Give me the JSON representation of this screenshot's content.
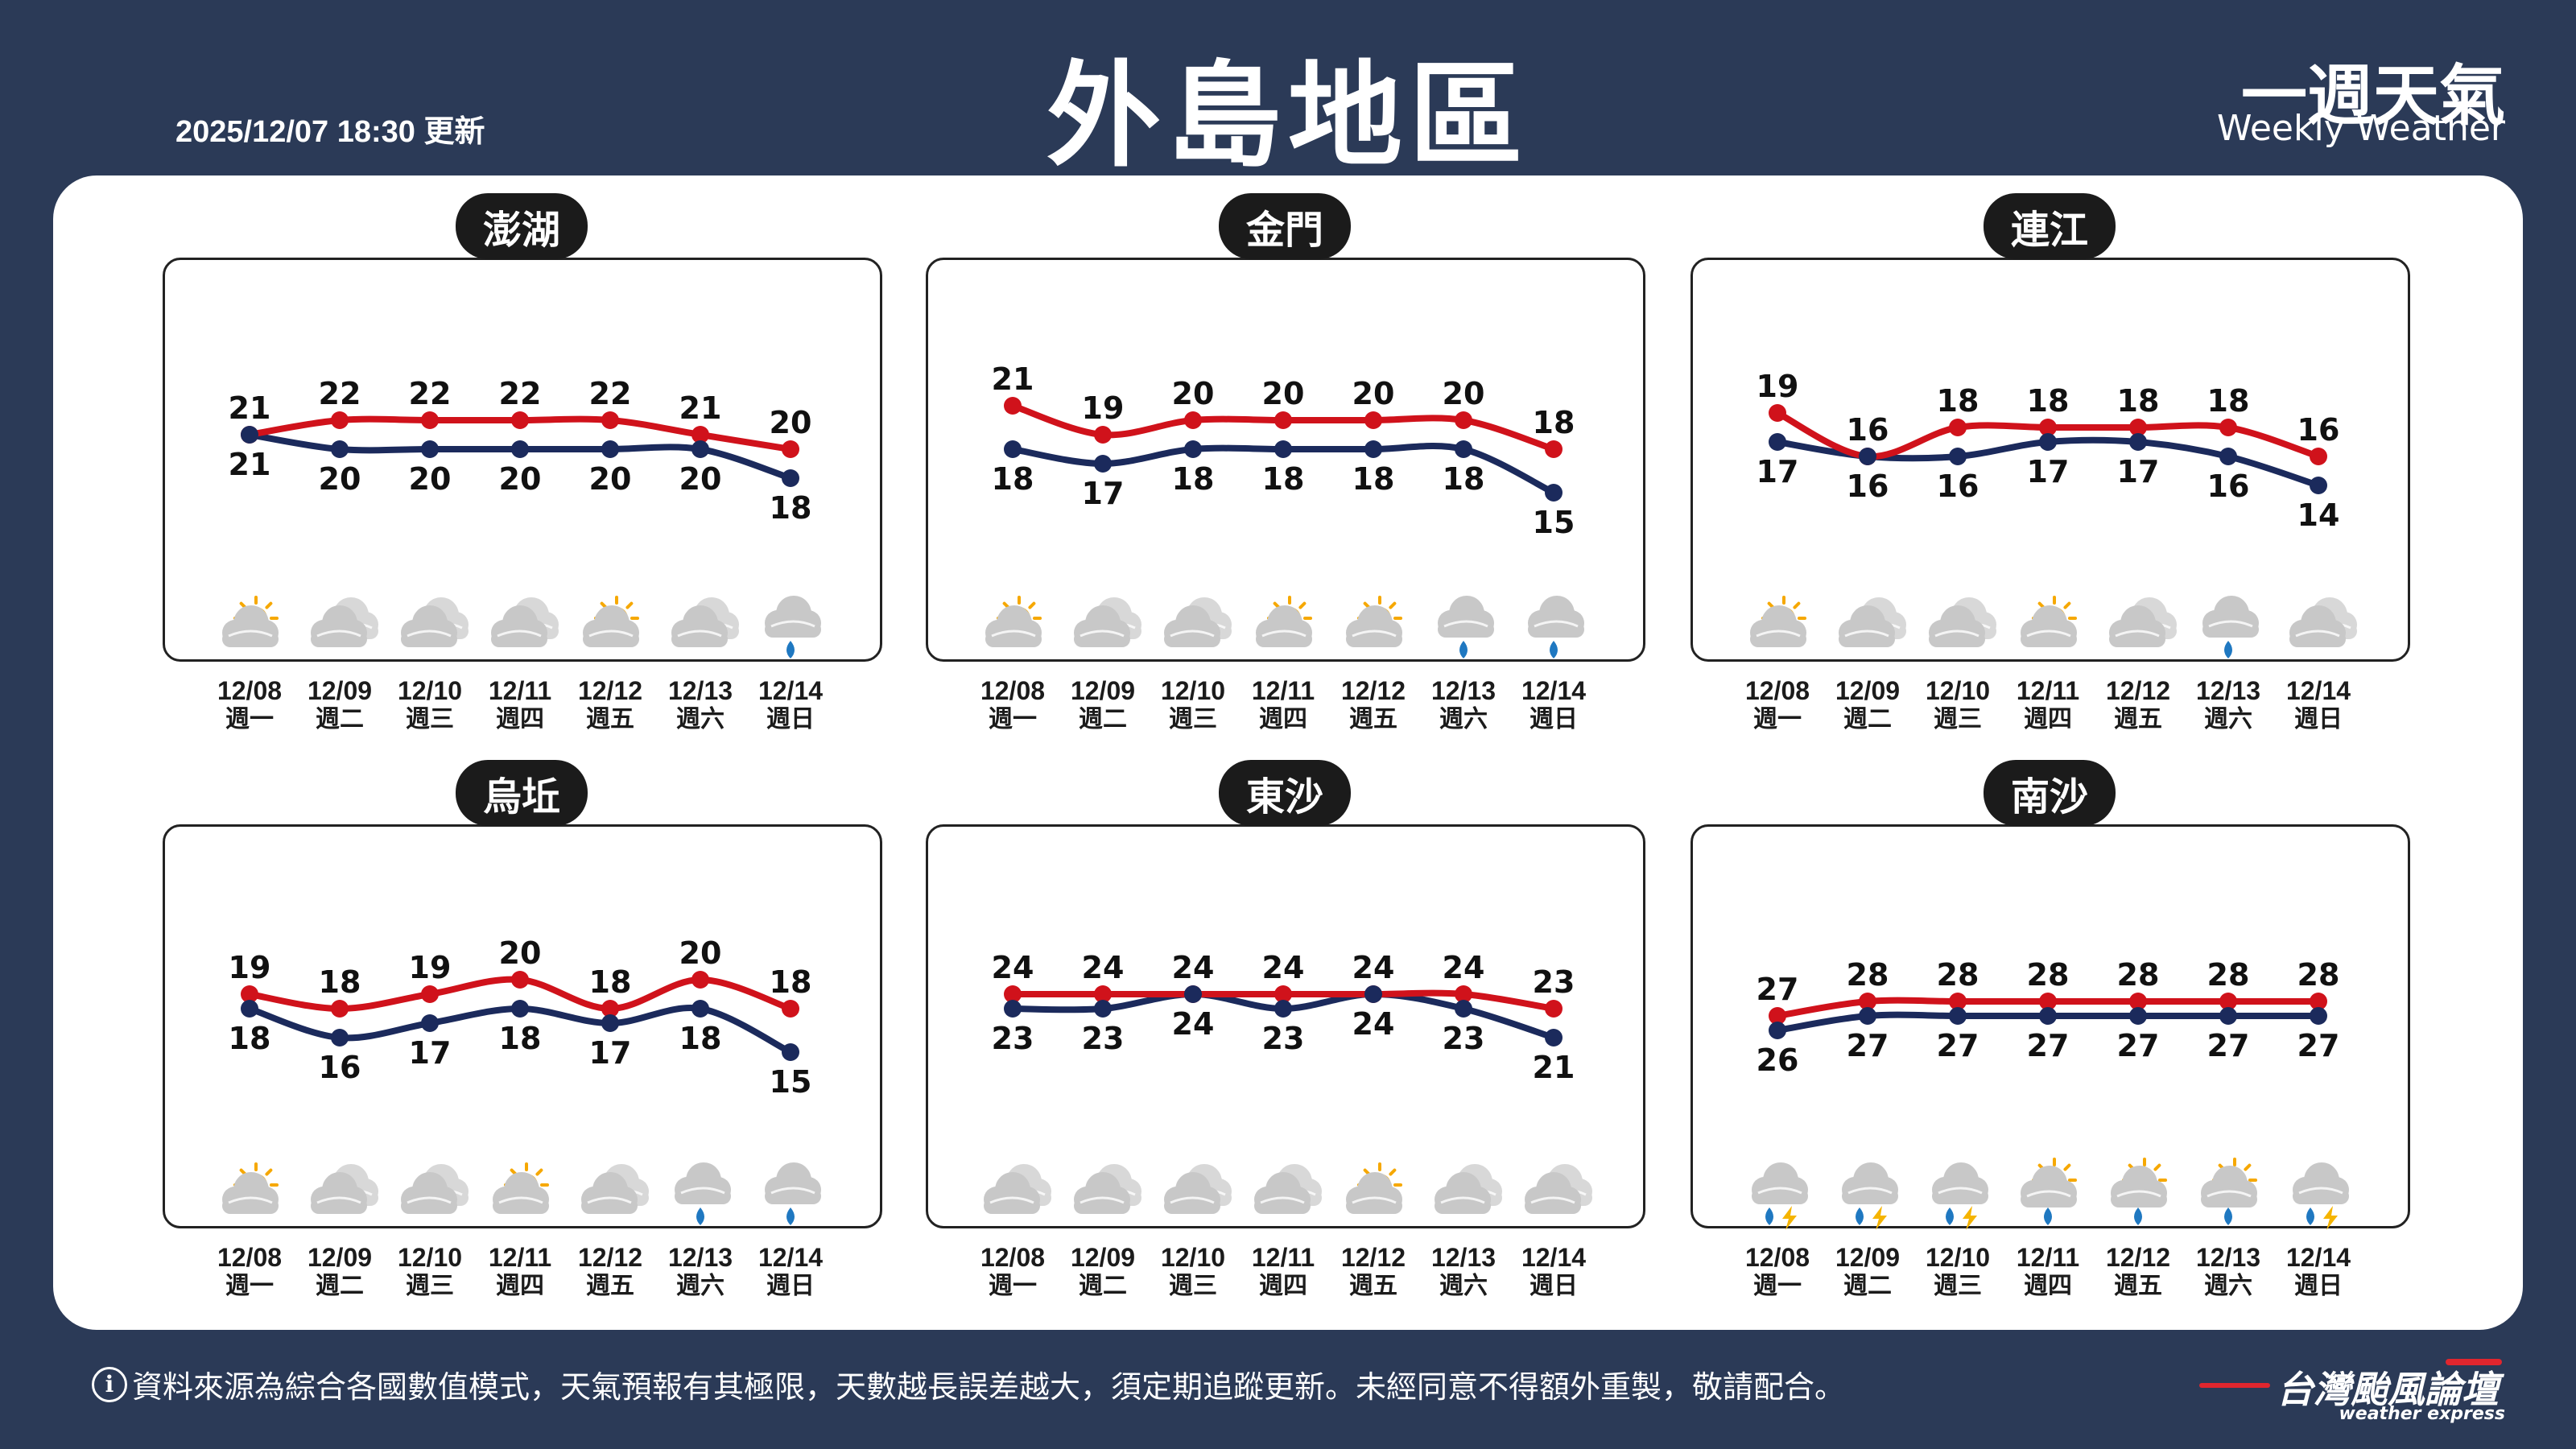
{
  "header": {
    "update_time": "2025/12/07 18:30 更新",
    "title": "外島地區",
    "brand_zh": "一週天氣",
    "brand_en": "Weekly Weather"
  },
  "colors": {
    "background": "#2b3a57",
    "high_line": "#d0121b",
    "low_line": "#1b2a5c",
    "rain": "#1f78c1",
    "lightning": "#f5b400",
    "sun": "#f6a800",
    "cloud": "#c8c8c8"
  },
  "regions": [
    {
      "name": "澎湖",
      "days": [
        {
          "date": "12/08",
          "weekday": "週一",
          "high": 21,
          "low": 21,
          "icon": "partly-sunny-icon"
        },
        {
          "date": "12/09",
          "weekday": "週二",
          "high": 22,
          "low": 20,
          "icon": "cloudy-icon"
        },
        {
          "date": "12/10",
          "weekday": "週三",
          "high": 22,
          "low": 20,
          "icon": "cloudy-icon"
        },
        {
          "date": "12/11",
          "weekday": "週四",
          "high": 22,
          "low": 20,
          "icon": "cloudy-icon"
        },
        {
          "date": "12/12",
          "weekday": "週五",
          "high": 22,
          "low": 20,
          "icon": "partly-sunny-icon"
        },
        {
          "date": "12/13",
          "weekday": "週六",
          "high": 21,
          "low": 20,
          "icon": "cloudy-icon"
        },
        {
          "date": "12/14",
          "weekday": "週日",
          "high": 20,
          "low": 18,
          "icon": "rain-icon"
        }
      ]
    },
    {
      "name": "金門",
      "days": [
        {
          "date": "12/08",
          "weekday": "週一",
          "high": 21,
          "low": 18,
          "icon": "partly-sunny-icon"
        },
        {
          "date": "12/09",
          "weekday": "週二",
          "high": 19,
          "low": 17,
          "icon": "cloudy-icon"
        },
        {
          "date": "12/10",
          "weekday": "週三",
          "high": 20,
          "low": 18,
          "icon": "cloudy-icon"
        },
        {
          "date": "12/11",
          "weekday": "週四",
          "high": 20,
          "low": 18,
          "icon": "partly-sunny-icon"
        },
        {
          "date": "12/12",
          "weekday": "週五",
          "high": 20,
          "low": 18,
          "icon": "partly-sunny-icon"
        },
        {
          "date": "12/13",
          "weekday": "週六",
          "high": 20,
          "low": 18,
          "icon": "rain-icon"
        },
        {
          "date": "12/14",
          "weekday": "週日",
          "high": 18,
          "low": 15,
          "icon": "rain-icon"
        }
      ]
    },
    {
      "name": "連江",
      "days": [
        {
          "date": "12/08",
          "weekday": "週一",
          "high": 19,
          "low": 17,
          "icon": "partly-sunny-icon"
        },
        {
          "date": "12/09",
          "weekday": "週二",
          "high": 16,
          "low": 16,
          "icon": "cloudy-icon"
        },
        {
          "date": "12/10",
          "weekday": "週三",
          "high": 18,
          "low": 16,
          "icon": "cloudy-icon"
        },
        {
          "date": "12/11",
          "weekday": "週四",
          "high": 18,
          "low": 17,
          "icon": "partly-sunny-icon"
        },
        {
          "date": "12/12",
          "weekday": "週五",
          "high": 18,
          "low": 17,
          "icon": "cloudy-icon"
        },
        {
          "date": "12/13",
          "weekday": "週六",
          "high": 18,
          "low": 16,
          "icon": "rain-icon"
        },
        {
          "date": "12/14",
          "weekday": "週日",
          "high": 16,
          "low": 14,
          "icon": "cloudy-icon"
        }
      ]
    },
    {
      "name": "烏坵",
      "days": [
        {
          "date": "12/08",
          "weekday": "週一",
          "high": 19,
          "low": 18,
          "icon": "partly-sunny-icon"
        },
        {
          "date": "12/09",
          "weekday": "週二",
          "high": 18,
          "low": 16,
          "icon": "cloudy-icon"
        },
        {
          "date": "12/10",
          "weekday": "週三",
          "high": 19,
          "low": 17,
          "icon": "cloudy-icon"
        },
        {
          "date": "12/11",
          "weekday": "週四",
          "high": 20,
          "low": 18,
          "icon": "partly-sunny-icon"
        },
        {
          "date": "12/12",
          "weekday": "週五",
          "high": 18,
          "low": 17,
          "icon": "cloudy-icon"
        },
        {
          "date": "12/13",
          "weekday": "週六",
          "high": 20,
          "low": 18,
          "icon": "rain-icon"
        },
        {
          "date": "12/14",
          "weekday": "週日",
          "high": 18,
          "low": 15,
          "icon": "rain-icon"
        }
      ]
    },
    {
      "name": "東沙",
      "days": [
        {
          "date": "12/08",
          "weekday": "週一",
          "high": 24,
          "low": 23,
          "icon": "cloudy-icon"
        },
        {
          "date": "12/09",
          "weekday": "週二",
          "high": 24,
          "low": 23,
          "icon": "cloudy-icon"
        },
        {
          "date": "12/10",
          "weekday": "週三",
          "high": 24,
          "low": 24,
          "icon": "cloudy-icon"
        },
        {
          "date": "12/11",
          "weekday": "週四",
          "high": 24,
          "low": 23,
          "icon": "cloudy-icon"
        },
        {
          "date": "12/12",
          "weekday": "週五",
          "high": 24,
          "low": 24,
          "icon": "partly-sunny-icon"
        },
        {
          "date": "12/13",
          "weekday": "週六",
          "high": 24,
          "low": 23,
          "icon": "cloudy-icon"
        },
        {
          "date": "12/14",
          "weekday": "週日",
          "high": 23,
          "low": 21,
          "icon": "cloudy-icon"
        }
      ]
    },
    {
      "name": "南沙",
      "days": [
        {
          "date": "12/08",
          "weekday": "週一",
          "high": 27,
          "low": 26,
          "icon": "thunderstorm-icon"
        },
        {
          "date": "12/09",
          "weekday": "週二",
          "high": 28,
          "low": 27,
          "icon": "thunderstorm-icon"
        },
        {
          "date": "12/10",
          "weekday": "週三",
          "high": 28,
          "low": 27,
          "icon": "thunderstorm-icon"
        },
        {
          "date": "12/11",
          "weekday": "週四",
          "high": 28,
          "low": 27,
          "icon": "sunny-rain-icon"
        },
        {
          "date": "12/12",
          "weekday": "週五",
          "high": 28,
          "low": 27,
          "icon": "sunny-rain-icon"
        },
        {
          "date": "12/13",
          "weekday": "週六",
          "high": 28,
          "low": 27,
          "icon": "sunny-rain-icon"
        },
        {
          "date": "12/14",
          "weekday": "週日",
          "high": 28,
          "low": 27,
          "icon": "thunderstorm-icon"
        }
      ]
    }
  ],
  "footer": {
    "disclaimer": "資料來源為綜合各國數值模式，天氣預報有其極限，天數越長誤差越大，須定期追蹤更新。未經同意不得額外重製，敬請配合。",
    "logo_zh": "台灣颱風論壇",
    "logo_en": "weather express"
  }
}
